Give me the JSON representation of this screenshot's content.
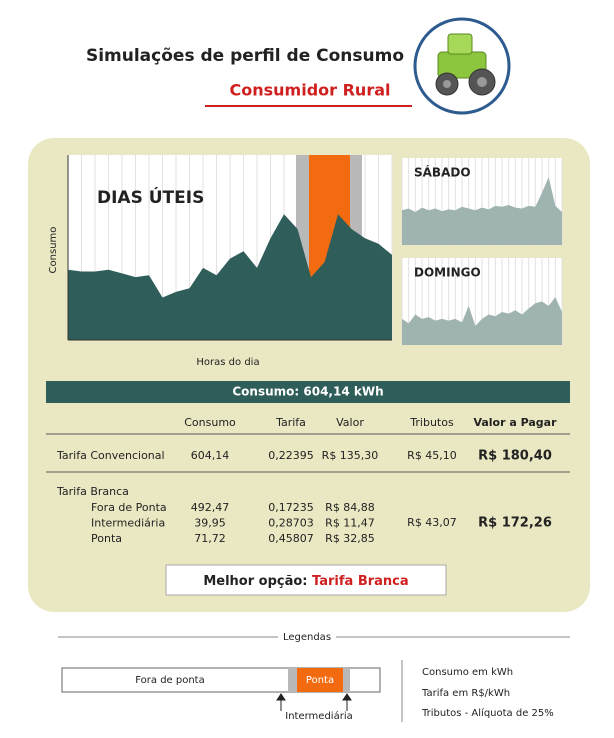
{
  "header": {
    "title": "Simulações de perfil de Consumo",
    "subtitle": "Consumidor Rural"
  },
  "charts": {
    "weekday": {
      "label": "DIAS ÚTEIS",
      "y_label": "Consumo",
      "x_label": "Horas do dia",
      "values": [
        38,
        37,
        37,
        38,
        36,
        34,
        35,
        23,
        26,
        28,
        39,
        35,
        44,
        48,
        39,
        55,
        68,
        60,
        34,
        42,
        68,
        60,
        55,
        52,
        46
      ]
    },
    "saturday": {
      "label": "SÁBADO",
      "values": [
        40,
        42,
        38,
        43,
        40,
        42,
        39,
        41,
        40,
        44,
        42,
        40,
        43,
        41,
        45,
        44,
        46,
        43,
        42,
        45,
        44,
        60,
        78,
        45,
        38
      ]
    },
    "sunday": {
      "label": "DOMINGO",
      "values": [
        30,
        25,
        35,
        30,
        32,
        28,
        30,
        28,
        30,
        26,
        45,
        22,
        30,
        35,
        33,
        38,
        36,
        40,
        35,
        42,
        48,
        50,
        45,
        55,
        38
      ]
    }
  },
  "summary": "Consumo: 604,14 kWh",
  "table": {
    "headers": [
      "Consumo",
      "Tarifa",
      "Valor",
      "Tributos",
      "Valor a Pagar"
    ],
    "conventional": {
      "label": "Tarifa Convencional",
      "cells": [
        "604,14",
        "0,22395",
        "R$ 135,30",
        "R$ 45,10",
        "R$ 180,40"
      ]
    },
    "branca": {
      "label": "Tarifa Branca",
      "rows": [
        {
          "label": "Fora de Ponta",
          "cells": [
            "492,47",
            "0,17235",
            "R$ 84,88"
          ]
        },
        {
          "label": "Intermediária",
          "cells": [
            "39,95",
            "0,28703",
            "R$ 11,47"
          ]
        },
        {
          "label": "Ponta",
          "cells": [
            "71,72",
            "0,45807",
            "R$ 32,85"
          ]
        }
      ],
      "tributos": "R$ 43,07",
      "total": "R$ 172,26"
    }
  },
  "best": {
    "prefix": "Melhor opção:",
    "value": "Tarifa Branca"
  },
  "legend": {
    "title": "Legendas",
    "off_peak": "Fora de ponta",
    "peak": "Ponta",
    "intermediate": "Intermediária",
    "notes": [
      "Consumo em kWh",
      "Tarifa  em R$/kWh",
      "Tributos - Alíquota de 25%"
    ]
  }
}
